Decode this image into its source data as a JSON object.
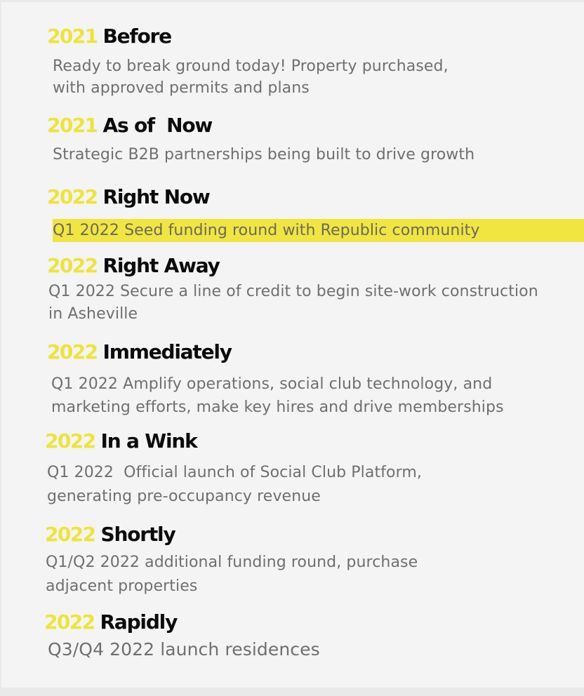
{
  "milestones": [
    {
      "year": "2021",
      "title": "Before",
      "lines": [
        "Ready to break ground today! Property purchased,",
        "with approved permits and plans"
      ],
      "highlighted": false
    },
    {
      "year": "2021",
      "title": "As of  Now",
      "lines": [
        "Strategic B2B partnerships being built to drive growth"
      ],
      "highlighted": false
    },
    {
      "year": "2022",
      "title": "Right Now",
      "lines": [
        "Q1 2022 Seed funding round with Republic community"
      ],
      "highlighted": true
    },
    {
      "year": "2022",
      "title": "Right Away",
      "lines": [
        "Q1 2022 Secure a line of credit to begin site-work construction",
        "in Asheville"
      ],
      "highlighted": false
    },
    {
      "year": "2022",
      "title": "Immediately",
      "lines": [
        "Q1 2022 Amplify operations, social club technology, and",
        "marketing efforts, make key hires and drive memberships"
      ],
      "highlighted": false
    },
    {
      "year": "2022",
      "title": "In a Wink",
      "lines": [
        "Q1 2022  Official launch of Social Club Platform,",
        "generating pre-occupancy revenue"
      ],
      "highlighted": false
    },
    {
      "year": "2022",
      "title": "Shortly",
      "lines": [
        "Q1/Q2 2022 additional funding round, purchase",
        "adjacent properties"
      ],
      "highlighted": false
    },
    {
      "year": "2022",
      "title": "Rapidly",
      "lines": [
        "Q3/Q4 2022 launch residences"
      ],
      "highlighted": false
    }
  ],
  "colors": {
    "year": "#efe33a",
    "title": "#0b0b0b",
    "description": "#6f6f6f",
    "highlight": "#f1e541",
    "background": "#f4f4f4"
  }
}
